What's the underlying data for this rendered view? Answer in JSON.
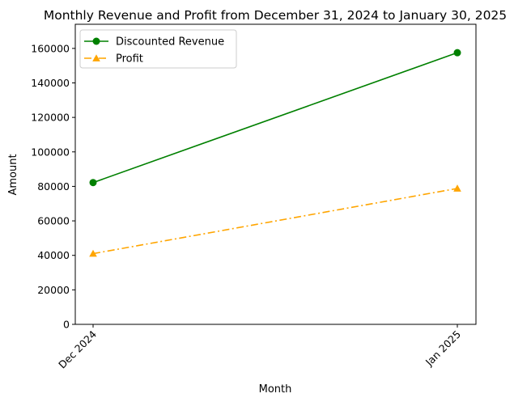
{
  "chart_data": {
    "type": "line",
    "title": "Monthly Revenue and Profit from December 31, 2024 to January 30, 2025",
    "xlabel": "Month",
    "ylabel": "Amount",
    "categories": [
      "Dec 2024",
      "Jan 2025"
    ],
    "ylim": [
      0,
      174000
    ],
    "yticks": [
      0,
      20000,
      40000,
      60000,
      80000,
      100000,
      120000,
      140000,
      160000
    ],
    "grid": false,
    "legend_position": "top-left",
    "series": [
      {
        "name": "Discounted Revenue",
        "values": [
          82200,
          157500
        ],
        "color": "#008000",
        "marker": "circle",
        "linestyle": "solid"
      },
      {
        "name": "Profit",
        "values": [
          41000,
          78800
        ],
        "color": "#FFA500",
        "marker": "triangle",
        "linestyle": "dashdot"
      }
    ]
  }
}
